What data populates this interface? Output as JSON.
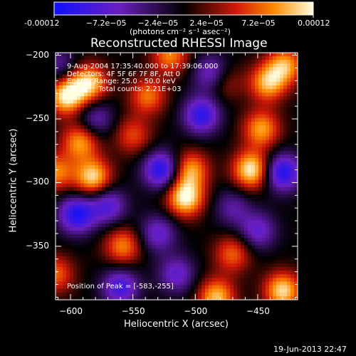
{
  "chart_data": {
    "type": "heatmap",
    "title": "Reconstructed RHESSI Image",
    "xlabel": "Heliocentric X (arcsec)",
    "ylabel": "Heliocentric Y (arcsec)",
    "xlim": [
      -612,
      -418
    ],
    "ylim": [
      -392,
      -198
    ],
    "x_ticks": [
      -600,
      -550,
      -500,
      -450
    ],
    "y_ticks": [
      -200,
      -250,
      -300,
      -350
    ],
    "colorbar": {
      "range": [
        -0.00012,
        0.00012
      ],
      "tick_values": [
        -0.00012,
        -7.2e-05,
        -2.4e-05,
        2.4e-05,
        7.2e-05,
        0.00012
      ],
      "tick_labels": [
        "-0.00012",
        "−7.2e−05",
        "−2.4e−05",
        "2.4e−05",
        "7.2e−05",
        "0.00012"
      ],
      "unit_label": "(photons cm⁻² s⁻¹ asec⁻²)"
    },
    "colors": {
      "min": "#1010ff",
      "neg": "#6a1fc0",
      "zero": "#000000",
      "mid": "#d01808",
      "high": "#ff8c00",
      "max": "#ffffe0"
    },
    "annotations": [
      "9-Aug-2004 17:35:40.000 to 17:39:06.000",
      "Detectors: 4F 5F 6F 7F 8F, Att 0",
      "Energy Range: 25.0 - 50.0 keV",
      "Clean     Total counts: 2.21E+03"
    ],
    "peak_label": "Position of Peak = [-583,-255]",
    "peak_position": [
      -583,
      -255
    ],
    "blobs": [
      {
        "x": -603,
        "y": -232,
        "v": 0.00012
      },
      {
        "x": -585,
        "y": -222,
        "v": 0.000105
      },
      {
        "x": -582,
        "y": -296,
        "v": 0.00011
      },
      {
        "x": -592,
        "y": -268,
        "v": 9e-05
      },
      {
        "x": -538,
        "y": -232,
        "v": 7.5e-05
      },
      {
        "x": -520,
        "y": -200,
        "v": 8e-05
      },
      {
        "x": -508,
        "y": -312,
        "v": 0.00012
      },
      {
        "x": -504,
        "y": -290,
        "v": 9e-05
      },
      {
        "x": -455,
        "y": -290,
        "v": 0.00012
      },
      {
        "x": -447,
        "y": -258,
        "v": 9e-05
      },
      {
        "x": -442,
        "y": -222,
        "v": 9.5e-05
      },
      {
        "x": -428,
        "y": -208,
        "v": 9e-05
      },
      {
        "x": -558,
        "y": -350,
        "v": 8e-05
      },
      {
        "x": -483,
        "y": -390,
        "v": 0.0001
      },
      {
        "x": -430,
        "y": -385,
        "v": 0.00011
      },
      {
        "x": -612,
        "y": -292,
        "v": 8e-05
      },
      {
        "x": -470,
        "y": -356,
        "v": 7e-05
      },
      {
        "x": -550,
        "y": -263,
        "v": 6e-05
      },
      {
        "x": -478,
        "y": -220,
        "v": 6e-05
      },
      {
        "x": -612,
        "y": -372,
        "v": 7e-05
      },
      {
        "x": -595,
        "y": -325,
        "v": -0.00011
      },
      {
        "x": -570,
        "y": -318,
        "v": -8e-05
      },
      {
        "x": -527,
        "y": -290,
        "v": -0.00011
      },
      {
        "x": -495,
        "y": -247,
        "v": -0.0001
      },
      {
        "x": -486,
        "y": -215,
        "v": -9e-05
      },
      {
        "x": -430,
        "y": -292,
        "v": -0.00011
      },
      {
        "x": -560,
        "y": -382,
        "v": -9e-05
      },
      {
        "x": -530,
        "y": -340,
        "v": -7e-05
      },
      {
        "x": -580,
        "y": -250,
        "v": -6e-05
      },
      {
        "x": -515,
        "y": -372,
        "v": -7e-05
      },
      {
        "x": -450,
        "y": -338,
        "v": -7e-05
      },
      {
        "x": -610,
        "y": -208,
        "v": -5e-05
      },
      {
        "x": -470,
        "y": -320,
        "v": -5e-05
      }
    ]
  },
  "footer": {
    "date": "19-Jun-2013 22:47"
  }
}
